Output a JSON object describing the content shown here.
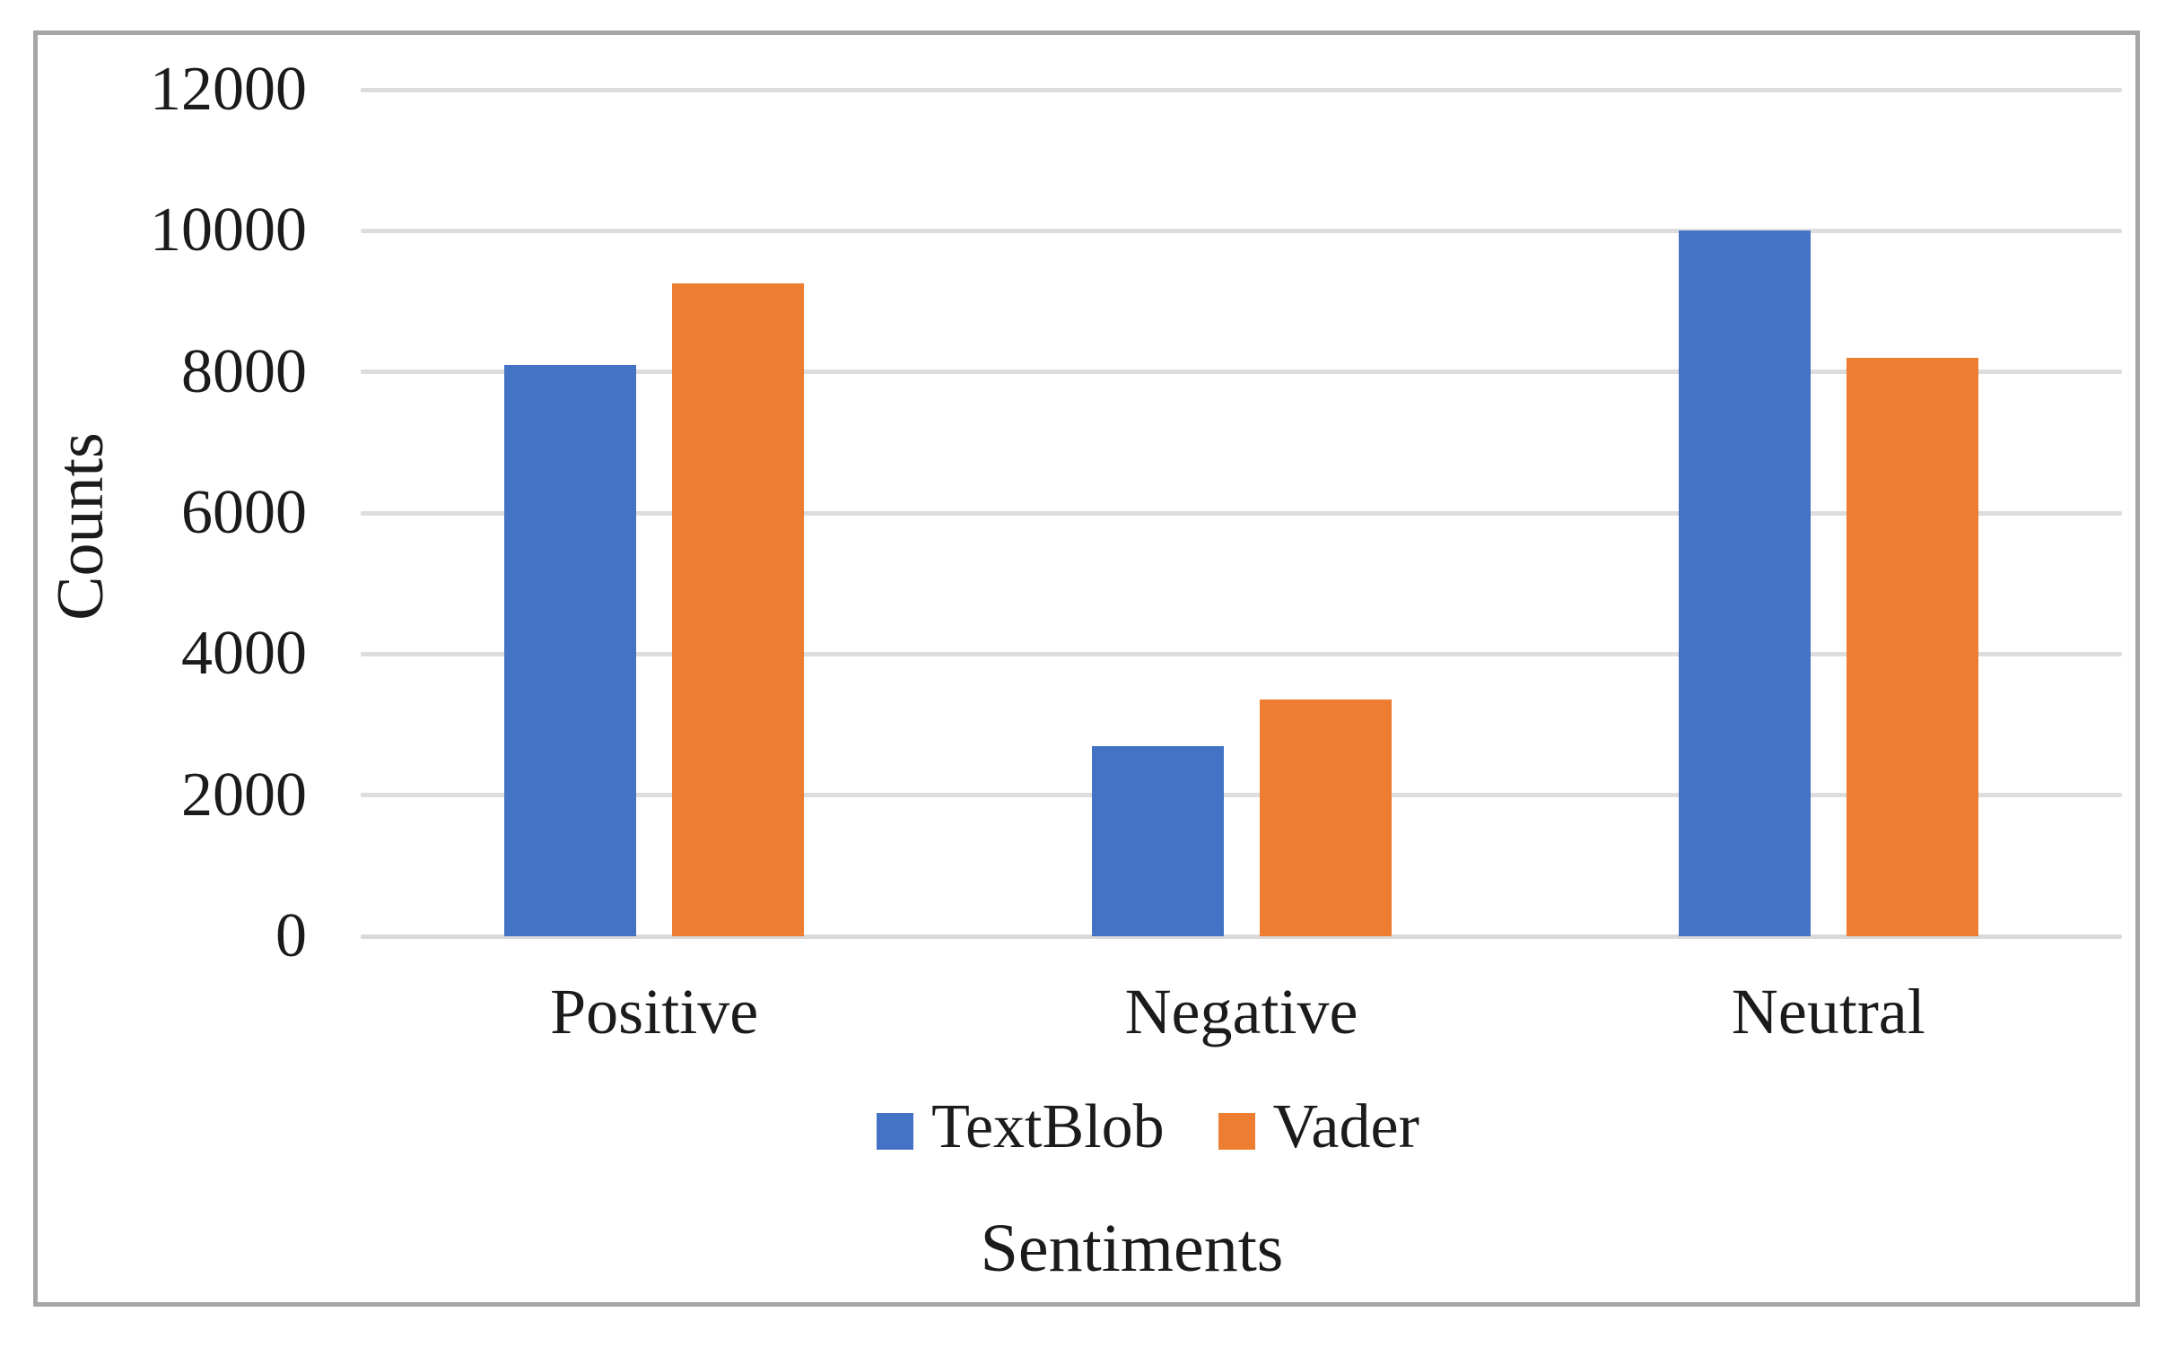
{
  "chart_data": {
    "type": "bar",
    "title": "",
    "categories": [
      "Positive",
      "Negative",
      "Neutral"
    ],
    "series": [
      {
        "name": "TextBlob",
        "color": "#4472C4",
        "values": [
          8100,
          2700,
          10000
        ]
      },
      {
        "name": "Vader",
        "color": "#ED7D31",
        "values": [
          9250,
          3350,
          8200
        ]
      }
    ],
    "xlabel": "Sentiments",
    "ylabel": "Counts",
    "ylim": [
      0,
      12000
    ],
    "yticks": [
      0,
      2000,
      4000,
      6000,
      8000,
      10000,
      12000
    ],
    "grid": true,
    "legend_position": "bottom-center"
  },
  "style": {
    "gridline_color": "#dddddd",
    "baseline_color": "#d9d9d9",
    "border_color": "#a6a6a6",
    "text_color": "#1b1b1b",
    "background_color": "#ffffff"
  }
}
